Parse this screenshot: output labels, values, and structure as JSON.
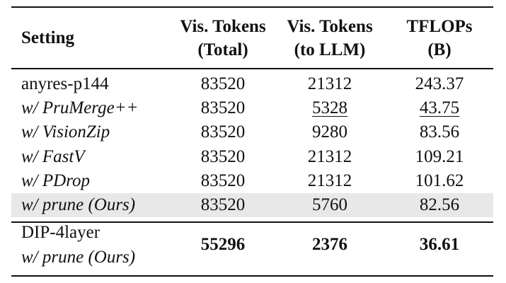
{
  "table": {
    "headers": [
      {
        "line1": "Setting",
        "line2": ""
      },
      {
        "line1": "Vis. Tokens",
        "line2": "(Total)"
      },
      {
        "line1": "Vis. Tokens",
        "line2": "(to LLM)"
      },
      {
        "line1": "TFLOPs",
        "line2": "(B)"
      }
    ],
    "rows": [
      {
        "setting": "anyres-p144",
        "total": "83520",
        "to_llm": "21312",
        "tflops": "243.37"
      },
      {
        "setting": "w/ PruMerge++",
        "total": "83520",
        "to_llm": "5328",
        "tflops": "43.75"
      },
      {
        "setting": "w/ VisionZip",
        "total": "83520",
        "to_llm": "9280",
        "tflops": "83.56"
      },
      {
        "setting": "w/ FastV",
        "total": "83520",
        "to_llm": "21312",
        "tflops": "109.21"
      },
      {
        "setting": "w/ PDrop",
        "total": "83520",
        "to_llm": "21312",
        "tflops": "101.62"
      },
      {
        "setting": "w/ prune (Ours)",
        "total": "83520",
        "to_llm": "5760",
        "tflops": "82.56"
      }
    ],
    "final_row": {
      "setting_line1": "DIP-4layer",
      "setting_line2": "w/ prune (Ours)",
      "total": "55296",
      "to_llm": "2376",
      "tflops": "36.61"
    },
    "highlight_color": "#e8e8e8"
  }
}
